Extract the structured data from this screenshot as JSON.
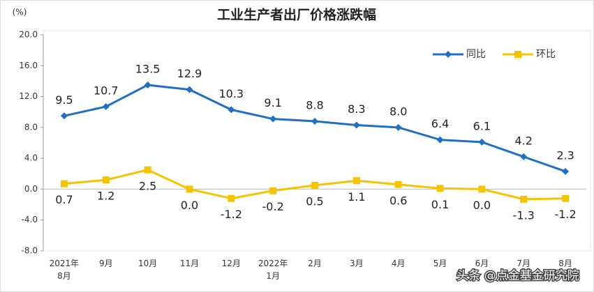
{
  "chart_data": {
    "type": "line",
    "title": "工业生产者出厂价格涨跌幅",
    "y_unit": "(%)",
    "categories": [
      "2021年\n8月",
      "9月",
      "10月",
      "11月",
      "12月",
      "2022年\n1月",
      "2月",
      "3月",
      "4月",
      "5月",
      "6月",
      "7月",
      "8月"
    ],
    "series": [
      {
        "name": "同比",
        "color": "#1f6fc5",
        "marker": "diamond",
        "label_side": "above",
        "values": [
          9.5,
          10.7,
          13.5,
          12.9,
          10.3,
          9.1,
          8.8,
          8.3,
          8.0,
          6.4,
          6.1,
          4.2,
          2.3
        ],
        "value_labels": [
          "9.5",
          "10.7",
          "13.5",
          "12.9",
          "10.3",
          "9.1",
          "8.8",
          "8.3",
          "8.0",
          "6.4",
          "6.1",
          "4.2",
          "2.3"
        ]
      },
      {
        "name": "环比",
        "color": "#f5c400",
        "marker": "square",
        "label_side": "below",
        "values": [
          0.7,
          1.2,
          2.5,
          0.0,
          -1.2,
          -0.2,
          0.5,
          1.1,
          0.6,
          0.1,
          0.0,
          -1.3,
          -1.2
        ],
        "value_labels": [
          "0.7",
          "1.2",
          "2.5",
          "0.0",
          "-1.2",
          "-0.2",
          "0.5",
          "1.1",
          "0.6",
          "0.1",
          "0.0",
          "-1.3",
          "-1.2"
        ]
      }
    ],
    "ylim": [
      -8,
      20
    ],
    "yticks": [
      {
        "value": -8,
        "label": "-8.0"
      },
      {
        "value": -4,
        "label": "-4.0"
      },
      {
        "value": 0,
        "label": "0.0"
      },
      {
        "value": 4,
        "label": "4.0"
      },
      {
        "value": 8,
        "label": "8.0"
      },
      {
        "value": 12,
        "label": "12.0"
      },
      {
        "value": 16,
        "label": "16.0"
      },
      {
        "value": 20,
        "label": "20.0"
      }
    ],
    "grid": false,
    "legend": "top-right",
    "watermark": "头条 @点金基金研究院"
  }
}
